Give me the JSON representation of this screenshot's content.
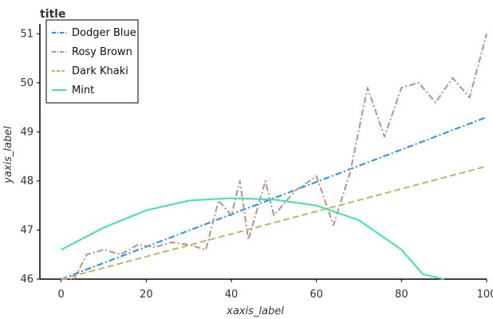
{
  "chart_data": {
    "type": "line",
    "title": "title",
    "xlabel": "xaxis_label",
    "ylabel": "yaxis_label",
    "xlim": [
      -5,
      100
    ],
    "ylim": [
      46,
      51.2
    ],
    "x_ticks": [
      0,
      20,
      40,
      60,
      80,
      100
    ],
    "y_ticks": [
      46,
      47,
      48,
      49,
      50,
      51
    ],
    "grid": false,
    "legend_position": "top-left",
    "series": [
      {
        "name": "Dodger Blue",
        "color": "#1e90ff",
        "dash": "dashdot",
        "x": [
          0,
          100
        ],
        "y": [
          46.0,
          49.3
        ]
      },
      {
        "name": "Rosy Brown",
        "color": "#bc8f8f",
        "dash": "dashdot",
        "x": [
          0,
          3,
          6,
          10,
          14,
          18,
          22,
          26,
          30,
          34,
          37,
          40,
          42,
          44,
          48,
          50,
          55,
          60,
          64,
          68,
          72,
          76,
          80,
          84,
          88,
          92,
          96,
          100
        ],
        "y": [
          46.0,
          46.0,
          46.5,
          46.6,
          46.5,
          46.7,
          46.65,
          46.75,
          46.7,
          46.6,
          47.6,
          47.3,
          48.0,
          46.8,
          48.0,
          47.3,
          47.8,
          48.1,
          47.1,
          48.2,
          49.9,
          48.9,
          49.9,
          50.0,
          49.6,
          50.1,
          49.7,
          51.0
        ]
      },
      {
        "name": "Dark Khaki",
        "color": "#bdb76b",
        "dash": "dashed",
        "x": [
          0,
          100
        ],
        "y": [
          46.0,
          48.3
        ]
      },
      {
        "name": "Mint",
        "color": "#3ce5a0",
        "dash": "solid",
        "x": [
          0,
          10,
          20,
          30,
          40,
          50,
          60,
          70,
          80,
          85,
          90
        ],
        "y": [
          46.6,
          47.05,
          47.4,
          47.6,
          47.65,
          47.62,
          47.5,
          47.2,
          46.6,
          46.1,
          46.0
        ]
      }
    ]
  }
}
